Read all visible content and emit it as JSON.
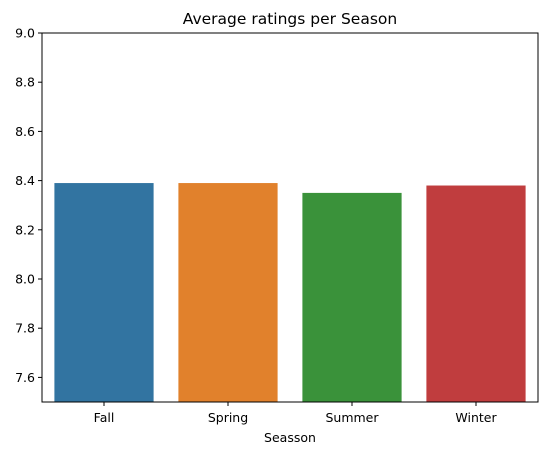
{
  "chart_data": {
    "type": "bar",
    "title": "Average ratings per Season",
    "xlabel": "Seasson",
    "ylabel": "",
    "ylim": [
      7.5,
      9.0
    ],
    "yticks": [
      "7.6",
      "7.8",
      "8.0",
      "8.2",
      "8.4",
      "8.6",
      "8.8",
      "9.0"
    ],
    "categories": [
      "Fall",
      "Spring",
      "Summer",
      "Winter"
    ],
    "values": [
      8.39,
      8.39,
      8.35,
      8.38
    ],
    "colors": [
      "#3274a1",
      "#e1812c",
      "#3a923a",
      "#c03d3e"
    ],
    "grid": false,
    "legend": false
  }
}
